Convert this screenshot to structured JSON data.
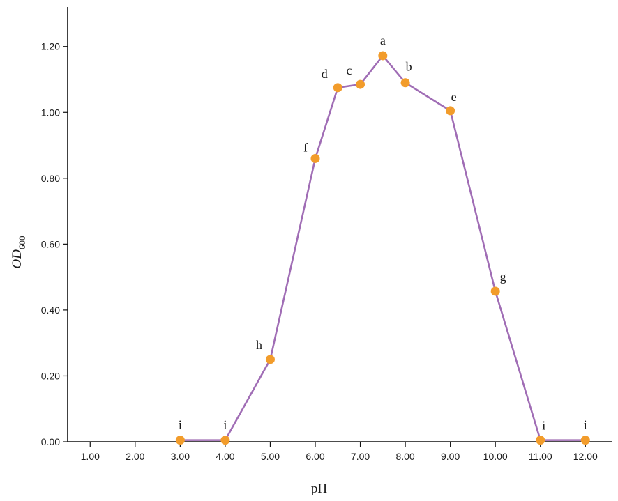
{
  "chart_data": {
    "type": "line",
    "title": "",
    "xlabel": "pH",
    "ylabel": {
      "main": "OD",
      "sub": "600"
    },
    "xlim": [
      0.5,
      12.6
    ],
    "ylim": [
      0,
      1.32
    ],
    "xticks": [
      1,
      2,
      3,
      4,
      5,
      6,
      7,
      8,
      9,
      10,
      11,
      12
    ],
    "xtick_labels": [
      "1.00",
      "2.00",
      "3.00",
      "4.00",
      "5.00",
      "6.00",
      "7.00",
      "8.00",
      "9.00",
      "10.00",
      "11.00",
      "12.00"
    ],
    "yticks": [
      0,
      0.2,
      0.4,
      0.6,
      0.8,
      1.0,
      1.2
    ],
    "ytick_labels": [
      "0.00",
      "0.20",
      "0.40",
      "0.60",
      "0.80",
      "1.00",
      "1.20"
    ],
    "grid": false,
    "series": [
      {
        "x": [
          3,
          4,
          5,
          6,
          6.5,
          7,
          7.5,
          8,
          9,
          10,
          11,
          12
        ],
        "y": [
          0.005,
          0.005,
          0.25,
          0.86,
          1.075,
          1.085,
          1.172,
          1.09,
          1.005,
          0.457,
          0.005,
          0.005
        ],
        "labels": [
          "i",
          "i",
          "h",
          "f",
          "d",
          "c",
          "a",
          "b",
          "e",
          "g",
          "i",
          "i"
        ],
        "line_color": "#a06db5",
        "marker_color": "#f29c2b"
      }
    ]
  }
}
